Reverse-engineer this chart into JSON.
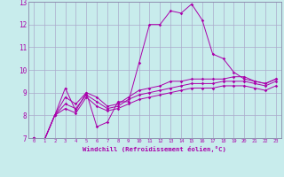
{
  "xlabel": "Windchill (Refroidissement éolien,°C)",
  "bg_color": "#c8ecec",
  "grid_color": "#aaaacc",
  "line_color": "#aa00aa",
  "xmin": -0.5,
  "xmax": 23.5,
  "ymin": 7,
  "ymax": 13,
  "series": [
    [
      7.0,
      6.9,
      8.0,
      9.2,
      8.2,
      9.0,
      7.5,
      7.7,
      8.6,
      8.6,
      10.3,
      12.0,
      12.0,
      12.6,
      12.5,
      12.9,
      12.2,
      10.7,
      10.5,
      9.9,
      9.6,
      9.5,
      9.4,
      9.6
    ],
    [
      7.0,
      6.9,
      8.0,
      8.8,
      8.5,
      9.0,
      8.8,
      8.4,
      8.5,
      8.8,
      9.1,
      9.2,
      9.3,
      9.5,
      9.5,
      9.6,
      9.6,
      9.6,
      9.6,
      9.7,
      9.7,
      9.5,
      9.4,
      9.6
    ],
    [
      7.0,
      6.9,
      8.0,
      8.5,
      8.3,
      8.9,
      8.6,
      8.3,
      8.4,
      8.7,
      8.9,
      9.0,
      9.1,
      9.2,
      9.3,
      9.4,
      9.4,
      9.4,
      9.5,
      9.5,
      9.5,
      9.4,
      9.3,
      9.5
    ],
    [
      7.0,
      6.9,
      8.0,
      8.3,
      8.1,
      8.8,
      8.4,
      8.2,
      8.3,
      8.5,
      8.7,
      8.8,
      8.9,
      9.0,
      9.1,
      9.2,
      9.2,
      9.2,
      9.3,
      9.3,
      9.3,
      9.2,
      9.1,
      9.3
    ]
  ],
  "xtick_labels": [
    "0",
    "1",
    "2",
    "3",
    "4",
    "5",
    "6",
    "7",
    "8",
    "9",
    "10",
    "11",
    "12",
    "13",
    "14",
    "15",
    "16",
    "17",
    "18",
    "19",
    "20",
    "21",
    "22",
    "23"
  ],
  "ytick_labels": [
    "7",
    "8",
    "9",
    "10",
    "11",
    "12",
    "13"
  ]
}
